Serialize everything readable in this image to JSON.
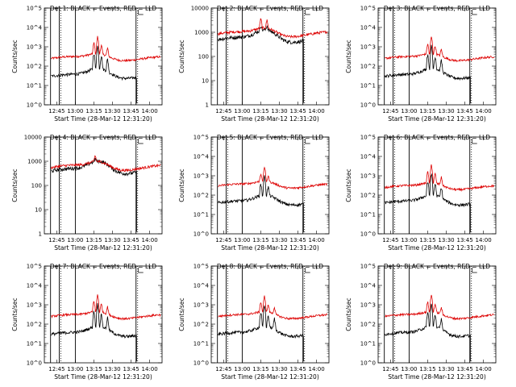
{
  "figure": {
    "xlabel": "Start Time (28-Mar-12 12:31:20)",
    "ylabel": "Counts/sec",
    "series_colors": {
      "events": "#000000",
      "lld": "#dd0000"
    }
  },
  "chart_data": [
    {
      "type": "line",
      "detector": 1,
      "title": "Det 1: BLACK = Events, RED = LLD",
      "xlabel": "Start Time (28-Mar-12 12:31:20)",
      "ylabel": "Counts/sec",
      "xlim": [
        "12:35",
        "14:10"
      ],
      "xticks": [
        "12:45",
        "13:00",
        "13:15",
        "13:30",
        "13:45",
        "14:00"
      ],
      "yscale": "log",
      "ylim": [
        1,
        100000
      ],
      "yticks": [
        "10^0",
        "10^1",
        "10^2",
        "10^3",
        "10^4",
        "10^5"
      ],
      "event_level": 30,
      "lld_level": 250,
      "flare_events": [
        {
          "time": "13:15",
          "peak": 1200
        },
        {
          "time": "13:18",
          "peak": 3000
        },
        {
          "time": "13:21",
          "peak": 800
        },
        {
          "time": "13:26",
          "peak": 500
        }
      ],
      "vertical_markers": [
        "12:40",
        "12:47",
        "13:00",
        "13:49"
      ],
      "dotted_markers": [
        "12:47",
        "13:49"
      ]
    },
    {
      "type": "line",
      "detector": 2,
      "title": "Det 2: BLACK = Events, RED = LLD",
      "xlabel": "Start Time (28-Mar-12 12:31:20)",
      "ylabel": "Counts/sec",
      "xlim": [
        "12:35",
        "14:10"
      ],
      "xticks": [
        "12:45",
        "13:00",
        "13:15",
        "13:30",
        "13:45",
        "14:00"
      ],
      "yscale": "log",
      "ylim": [
        1,
        10000
      ],
      "yticks": [
        "1",
        "10",
        "100",
        "1000",
        "10000"
      ],
      "event_level": 500,
      "lld_level": 850,
      "flare_events": [
        {
          "time": "13:15",
          "peak": 2200
        },
        {
          "time": "13:20",
          "peak": 1800
        }
      ],
      "vertical_markers": [
        "12:40",
        "12:47",
        "13:00",
        "13:49"
      ],
      "dotted_markers": [
        "12:47",
        "13:49"
      ]
    },
    {
      "type": "line",
      "detector": 3,
      "title": "Det 3: BLACK = Events, RED = LLD",
      "xlabel": "Start Time (28-Mar-12 12:31:20)",
      "ylabel": "Counts/sec",
      "xlim": [
        "12:35",
        "14:10"
      ],
      "xticks": [
        "12:45",
        "13:00",
        "13:15",
        "13:30",
        "13:45",
        "14:00"
      ],
      "yscale": "log",
      "ylim": [
        1,
        100000
      ],
      "yticks": [
        "10^0",
        "10^1",
        "10^2",
        "10^3",
        "10^4",
        "10^5"
      ],
      "event_level": 30,
      "lld_level": 250,
      "flare_events": [
        {
          "time": "13:15",
          "peak": 1000
        },
        {
          "time": "13:18",
          "peak": 3000
        },
        {
          "time": "13:21",
          "peak": 700
        },
        {
          "time": "13:26",
          "peak": 400
        }
      ],
      "vertical_markers": [
        "12:40",
        "12:47",
        "13:00",
        "13:49"
      ],
      "dotted_markers": [
        "12:47",
        "13:49"
      ]
    },
    {
      "type": "line",
      "detector": 4,
      "title": "Det 4: BLACK = Events, RED = LLD",
      "xlabel": "Start Time (28-Mar-12 12:31:20)",
      "ylabel": "Counts/sec",
      "xlim": [
        "12:35",
        "14:10"
      ],
      "xticks": [
        "12:45",
        "13:00",
        "13:15",
        "13:30",
        "13:45",
        "14:00"
      ],
      "yscale": "log",
      "ylim": [
        1,
        10000
      ],
      "yticks": [
        "1",
        "10",
        "100",
        "1000",
        "10000"
      ],
      "event_level": 400,
      "lld_level": 550,
      "flare_events": [
        {
          "time": "13:16",
          "peak": 800
        }
      ],
      "vertical_markers": [
        "12:40",
        "12:47",
        "13:00",
        "13:49"
      ],
      "dotted_markers": [
        "12:47",
        "13:49"
      ]
    },
    {
      "type": "line",
      "detector": 5,
      "title": "Det 5: BLACK = Events, RED = LLD",
      "xlabel": "Start Time (28-Mar-12 12:31:20)",
      "ylabel": "Counts/sec",
      "xlim": [
        "12:35",
        "14:10"
      ],
      "xticks": [
        "12:45",
        "13:00",
        "13:15",
        "13:30",
        "13:45",
        "14:00"
      ],
      "yscale": "log",
      "ylim": [
        1,
        100000
      ],
      "yticks": [
        "10^0",
        "10^1",
        "10^2",
        "10^3",
        "10^4",
        "10^5"
      ],
      "event_level": 40,
      "lld_level": 300,
      "flare_events": [
        {
          "time": "13:15",
          "peak": 800
        },
        {
          "time": "13:18",
          "peak": 2500
        },
        {
          "time": "13:21",
          "peak": 500
        }
      ],
      "vertical_markers": [
        "12:40",
        "12:47",
        "13:00",
        "13:49"
      ],
      "dotted_markers": [
        "12:47",
        "13:49"
      ]
    },
    {
      "type": "line",
      "detector": 6,
      "title": "Det 6: BLACK = Events, RED = LLD",
      "xlabel": "Start Time (28-Mar-12 12:31:20)",
      "ylabel": "Counts/sec",
      "xlim": [
        "12:35",
        "14:10"
      ],
      "xticks": [
        "12:45",
        "13:00",
        "13:15",
        "13:30",
        "13:45",
        "14:00"
      ],
      "yscale": "log",
      "ylim": [
        1,
        100000
      ],
      "yticks": [
        "10^0",
        "10^1",
        "10^2",
        "10^3",
        "10^4",
        "10^5"
      ],
      "event_level": 40,
      "lld_level": 250,
      "flare_events": [
        {
          "time": "13:15",
          "peak": 1200
        },
        {
          "time": "13:18",
          "peak": 3500
        },
        {
          "time": "13:21",
          "peak": 900
        },
        {
          "time": "13:26",
          "peak": 500
        }
      ],
      "vertical_markers": [
        "12:40",
        "12:47",
        "13:00",
        "13:49"
      ],
      "dotted_markers": [
        "12:47",
        "13:49"
      ]
    },
    {
      "type": "line",
      "detector": 7,
      "title": "Det 7: BLACK = Events, RED = LLD",
      "xlabel": "Start Time (28-Mar-12 12:31:20)",
      "ylabel": "Counts/sec",
      "xlim": [
        "12:35",
        "14:10"
      ],
      "xticks": [
        "12:45",
        "13:00",
        "13:15",
        "13:30",
        "13:45",
        "14:00"
      ],
      "yscale": "log",
      "ylim": [
        1,
        100000
      ],
      "yticks": [
        "10^0",
        "10^1",
        "10^2",
        "10^3",
        "10^4",
        "10^5"
      ],
      "event_level": 30,
      "lld_level": 250,
      "flare_events": [
        {
          "time": "13:15",
          "peak": 1200
        },
        {
          "time": "13:18",
          "peak": 3000
        },
        {
          "time": "13:21",
          "peak": 700
        },
        {
          "time": "13:26",
          "peak": 450
        }
      ],
      "vertical_markers": [
        "12:40",
        "12:47",
        "13:00",
        "13:49"
      ],
      "dotted_markers": [
        "12:47",
        "13:49"
      ]
    },
    {
      "type": "line",
      "detector": 8,
      "title": "Det 8: BLACK = Events, RED = LLD",
      "xlabel": "Start Time (28-Mar-12 12:31:20)",
      "ylabel": "Counts/sec",
      "xlim": [
        "12:35",
        "14:10"
      ],
      "xticks": [
        "12:45",
        "13:00",
        "13:15",
        "13:30",
        "13:45",
        "14:00"
      ],
      "yscale": "log",
      "ylim": [
        1,
        100000
      ],
      "yticks": [
        "10^0",
        "10^1",
        "10^2",
        "10^3",
        "10^4",
        "10^5"
      ],
      "event_level": 30,
      "lld_level": 250,
      "flare_events": [
        {
          "time": "13:15",
          "peak": 1000
        },
        {
          "time": "13:18",
          "peak": 2500
        },
        {
          "time": "13:21",
          "peak": 600
        },
        {
          "time": "13:26",
          "peak": 400
        }
      ],
      "vertical_markers": [
        "12:40",
        "12:47",
        "13:00",
        "13:49"
      ],
      "dotted_markers": [
        "12:47",
        "13:49"
      ]
    },
    {
      "type": "line",
      "detector": 9,
      "title": "Det 9: BLACK = Events, RED = LLD",
      "xlabel": "Start Time (28-Mar-12 12:31:20)",
      "ylabel": "Counts/sec",
      "xlim": [
        "12:35",
        "14:10"
      ],
      "xticks": [
        "12:45",
        "13:00",
        "13:15",
        "13:30",
        "13:45",
        "14:00"
      ],
      "yscale": "log",
      "ylim": [
        1,
        100000
      ],
      "yticks": [
        "10^0",
        "10^1",
        "10^2",
        "10^3",
        "10^4",
        "10^5"
      ],
      "event_level": 30,
      "lld_level": 250,
      "flare_events": [
        {
          "time": "13:15",
          "peak": 1000
        },
        {
          "time": "13:18",
          "peak": 3000
        },
        {
          "time": "13:21",
          "peak": 700
        },
        {
          "time": "13:26",
          "peak": 400
        }
      ],
      "vertical_markers": [
        "12:40",
        "12:47",
        "13:00",
        "13:49"
      ],
      "dotted_markers": [
        "12:47",
        "13:49"
      ]
    }
  ]
}
